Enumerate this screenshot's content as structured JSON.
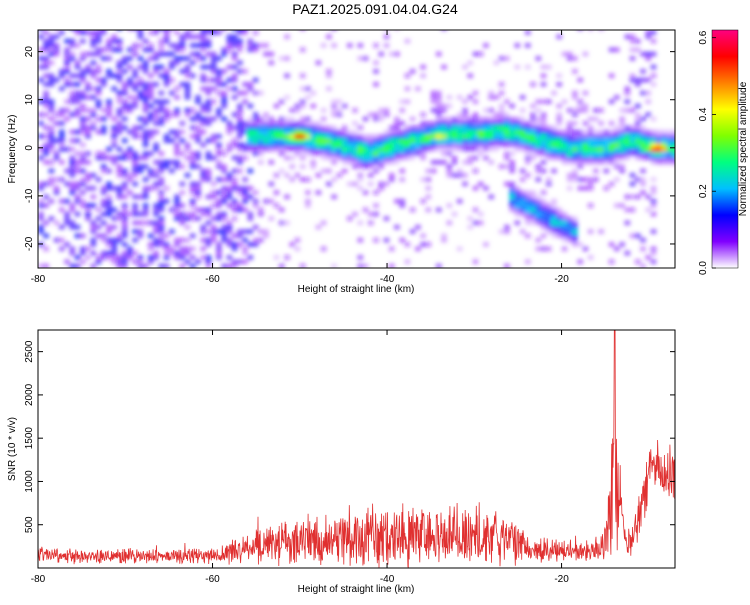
{
  "figure": {
    "title": "PAZ1.2025.091.04.04.G24"
  },
  "chart_data": [
    {
      "type": "heatmap",
      "xlabel": "Height of straight line (km)",
      "ylabel": "Frequency (Hz)",
      "xlim": [
        -80,
        -7
      ],
      "ylim": [
        -25,
        24.5
      ],
      "x_ticks": [
        -80,
        -60,
        -40,
        -20
      ],
      "y_ticks": [
        -20,
        -10,
        0,
        10,
        20
      ],
      "colorbar": {
        "label": "Normalized spectral amplitude",
        "range": [
          0,
          0.62
        ],
        "ticks": [
          0.0,
          0.2,
          0.4,
          0.6
        ],
        "colormap": [
          "#ffffff",
          "#8000ff",
          "#0000ff",
          "#00c0ff",
          "#00ff80",
          "#80ff00",
          "#ffff00",
          "#ff8000",
          "#ff0000",
          "#ff0080"
        ]
      },
      "features": {
        "main_ridge": [
          [
            -55,
            2.5
          ],
          [
            -50,
            2.5
          ],
          [
            -46,
            1
          ],
          [
            -42,
            -1
          ],
          [
            -38,
            1
          ],
          [
            -34,
            3
          ],
          [
            -30,
            3
          ],
          [
            -26,
            3.5
          ],
          [
            -22,
            1.5
          ],
          [
            -19,
            0
          ],
          [
            -15,
            0
          ],
          [
            -12,
            1.5
          ],
          [
            -9,
            0
          ]
        ],
        "peaks": [
          [
            -50,
            2.5,
            0.55
          ],
          [
            -34,
            2.5,
            0.42
          ],
          [
            -9,
            0,
            0.58
          ]
        ],
        "secondary_branch": [
          [
            -26,
            -10
          ],
          [
            -22,
            -14
          ],
          [
            -18,
            -18
          ]
        ]
      }
    },
    {
      "type": "line",
      "xlabel": "Height of straight line (km)",
      "ylabel": "SNR (10 * v/v)",
      "xlim": [
        -80,
        -7
      ],
      "ylim": [
        0,
        2750
      ],
      "x_ticks": [
        -80,
        -60,
        -40,
        -20
      ],
      "y_ticks": [
        500,
        1000,
        1500,
        2000,
        2500
      ],
      "color": "#e03030",
      "envelope": {
        "x": [
          -80,
          -75,
          -70,
          -65,
          -60,
          -57,
          -54,
          -50,
          -47,
          -44,
          -42,
          -40,
          -38,
          -35,
          -32,
          -30,
          -28,
          -26,
          -24,
          -22,
          -20,
          -18,
          -16,
          -15,
          -14.5,
          -14,
          -13.5,
          -13,
          -12.5,
          -12,
          -11,
          -10,
          -9,
          -8,
          -7
        ],
        "mean": [
          150,
          130,
          140,
          130,
          150,
          190,
          280,
          300,
          310,
          340,
          360,
          380,
          370,
          350,
          360,
          380,
          370,
          300,
          240,
          220,
          200,
          190,
          200,
          300,
          700,
          1100,
          900,
          500,
          300,
          250,
          650,
          1150,
          1200,
          1050,
          1100
        ],
        "spread": [
          90,
          80,
          80,
          80,
          90,
          150,
          220,
          260,
          270,
          330,
          350,
          360,
          340,
          330,
          380,
          400,
          340,
          240,
          180,
          150,
          130,
          110,
          120,
          250,
          600,
          900,
          700,
          300,
          200,
          160,
          350,
          300,
          280,
          250,
          300
        ]
      },
      "peak": {
        "x": -13.9,
        "y": 2750
      }
    }
  ]
}
